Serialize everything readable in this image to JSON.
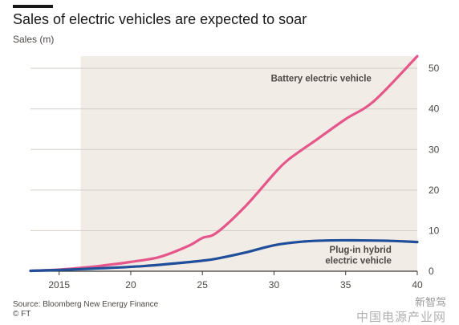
{
  "chart_data": {
    "type": "line",
    "title": "Sales of electric vehicles are expected to soar",
    "ylabel": "Sales (m)",
    "xlabel": "",
    "x_tick_labels": [
      "2015",
      "20",
      "25",
      "30",
      "35",
      "40"
    ],
    "x_ticks": [
      2015,
      2020,
      2025,
      2030,
      2035,
      2040
    ],
    "y_ticks": [
      0,
      10,
      20,
      30,
      40,
      50
    ],
    "xlim": [
      2013,
      2040
    ],
    "ylim": [
      0,
      53
    ],
    "forecast_shading_start": 2016.5,
    "grid": true,
    "series": [
      {
        "name": "Battery electric vehicle",
        "color": "#e5568b",
        "x": [
          2013,
          2015,
          2017,
          2019,
          2020,
          2022,
          2024,
          2025,
          2026,
          2028,
          2030,
          2031,
          2033,
          2035,
          2037,
          2040
        ],
        "values": [
          0.1,
          0.4,
          1.0,
          1.8,
          2.3,
          3.5,
          6.2,
          8.2,
          9.5,
          16.0,
          24.0,
          27.5,
          32.5,
          37.5,
          42.0,
          53.0
        ]
      },
      {
        "name": "Plug-in hybrid electric vehicle",
        "color": "#1f4e9a",
        "x": [
          2013,
          2015,
          2017,
          2019,
          2021,
          2023,
          2025,
          2026,
          2028,
          2030,
          2032,
          2034,
          2036,
          2038,
          2040
        ],
        "values": [
          0.1,
          0.3,
          0.6,
          0.9,
          1.3,
          1.9,
          2.6,
          3.1,
          4.6,
          6.4,
          7.3,
          7.6,
          7.6,
          7.5,
          7.2
        ]
      }
    ]
  },
  "source": {
    "line1": "Source: Bloomberg New Energy Finance",
    "line2": "© FT"
  },
  "watermark": {
    "logo": "新智驾",
    "text": "中国电源产业网"
  }
}
